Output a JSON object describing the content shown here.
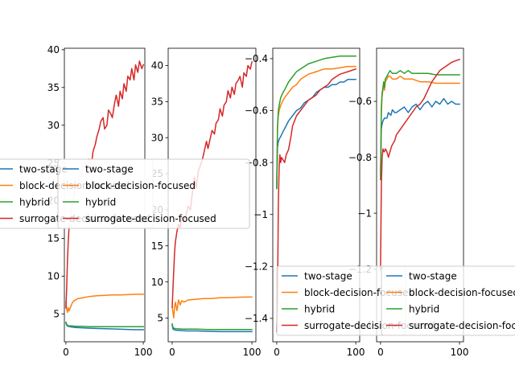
{
  "colors": {
    "two-stage": "#1f77b4",
    "block-decision-focused": "#ff7f0e",
    "hybrid": "#2ca02c",
    "surrogate-decision-focused": "#d62728"
  },
  "legend_labels": [
    "two-stage",
    "block-decision-focused",
    "hybrid",
    "surrogate-decision-focused"
  ],
  "chart_data": [
    {
      "type": "line",
      "xlim": [
        -2,
        102
      ],
      "ylim": [
        1.3,
        40.2
      ],
      "xticks": [
        0,
        100
      ],
      "yticks": [
        5,
        10,
        15,
        20,
        25,
        30,
        35,
        40
      ],
      "legend": "left",
      "series": [
        {
          "name": "two-stage",
          "x": [
            0,
            1,
            2,
            3,
            5,
            8,
            12,
            20,
            30,
            45,
            60,
            75,
            90,
            100
          ],
          "y": [
            3.8,
            3.5,
            3.4,
            3.35,
            3.3,
            3.25,
            3.2,
            3.15,
            3.1,
            3.05,
            3.0,
            2.95,
            2.9,
            2.9
          ]
        },
        {
          "name": "block-decision-focused",
          "x": [
            0,
            1,
            2,
            3,
            4,
            6,
            8,
            10,
            15,
            20,
            30,
            40,
            50,
            60,
            70,
            80,
            90,
            100
          ],
          "y": [
            6.5,
            5.6,
            5.2,
            5.8,
            5.4,
            5.9,
            6.4,
            6.7,
            7.0,
            7.1,
            7.3,
            7.4,
            7.45,
            7.5,
            7.5,
            7.55,
            7.6,
            7.6
          ]
        },
        {
          "name": "hybrid",
          "x": [
            0,
            1,
            2,
            3,
            5,
            8,
            12,
            20,
            30,
            45,
            60,
            75,
            90,
            100
          ],
          "y": [
            3.9,
            3.6,
            3.5,
            3.45,
            3.4,
            3.4,
            3.35,
            3.35,
            3.3,
            3.3,
            3.3,
            3.3,
            3.3,
            3.3
          ]
        },
        {
          "name": "surrogate-decision-focused",
          "x": [
            0,
            1,
            2,
            3,
            4,
            6,
            8,
            10,
            12,
            15,
            18,
            20,
            22,
            25,
            28,
            30,
            33,
            35,
            38,
            40,
            43,
            45,
            48,
            50,
            53,
            55,
            58,
            60,
            63,
            65,
            68,
            70,
            73,
            75,
            78,
            80,
            83,
            85,
            88,
            90,
            93,
            95,
            98,
            100
          ],
          "y": [
            5.8,
            8.5,
            12.0,
            14.5,
            16.5,
            18.0,
            19.5,
            20.5,
            21.5,
            22.0,
            23.5,
            23.0,
            24.5,
            25.0,
            24.0,
            25.5,
            24.8,
            26.5,
            27.5,
            28.5,
            29.5,
            30.5,
            31.0,
            29.5,
            30.0,
            32.0,
            31.5,
            31.0,
            33.0,
            34.0,
            32.5,
            34.5,
            33.5,
            35.5,
            34.5,
            36.5,
            36.0,
            37.5,
            36.0,
            38.0,
            37.0,
            38.5,
            37.5,
            38.0
          ]
        }
      ]
    },
    {
      "type": "line",
      "xlim": [
        -5,
        105
      ],
      "ylim": [
        1.7,
        42.4
      ],
      "xticks": [
        0,
        100
      ],
      "yticks": [
        5,
        10,
        15,
        20,
        25,
        30,
        35,
        40
      ],
      "legend": "left",
      "series": [
        {
          "name": "two-stage",
          "x": [
            0,
            1,
            2,
            3,
            5,
            8,
            12,
            20,
            30,
            45,
            60,
            75,
            90,
            100
          ],
          "y": [
            4.0,
            3.5,
            3.4,
            3.35,
            3.3,
            3.3,
            3.25,
            3.2,
            3.2,
            3.15,
            3.1,
            3.1,
            3.1,
            3.1
          ]
        },
        {
          "name": "block-decision-focused",
          "x": [
            0,
            1,
            2,
            3,
            4,
            6,
            8,
            10,
            12,
            15,
            20,
            30,
            40,
            50,
            60,
            70,
            80,
            90,
            100
          ],
          "y": [
            6.5,
            5.8,
            5.0,
            6.5,
            7.2,
            6.0,
            7.5,
            6.8,
            7.4,
            7.2,
            7.5,
            7.6,
            7.7,
            7.7,
            7.8,
            7.8,
            7.85,
            7.9,
            7.9
          ]
        },
        {
          "name": "hybrid",
          "x": [
            0,
            1,
            2,
            3,
            5,
            8,
            12,
            20,
            30,
            45,
            60,
            75,
            90,
            100
          ],
          "y": [
            4.2,
            3.7,
            3.6,
            3.55,
            3.5,
            3.5,
            3.45,
            3.45,
            3.45,
            3.4,
            3.4,
            3.4,
            3.4,
            3.4
          ]
        },
        {
          "name": "surrogate-decision-focused",
          "x": [
            0,
            1,
            2,
            3,
            4,
            6,
            8,
            10,
            12,
            15,
            18,
            20,
            23,
            25,
            28,
            30,
            33,
            35,
            38,
            40,
            43,
            45,
            48,
            50,
            53,
            55,
            58,
            60,
            63,
            65,
            68,
            70,
            73,
            75,
            78,
            80,
            83,
            85,
            88,
            90,
            93,
            95,
            98,
            100
          ],
          "y": [
            6.5,
            9.0,
            11.5,
            14.0,
            15.5,
            17.0,
            18.0,
            17.5,
            19.0,
            18.5,
            19.5,
            20.5,
            20.0,
            22.0,
            24.5,
            23.0,
            25.5,
            26.0,
            27.0,
            28.0,
            29.5,
            28.5,
            30.0,
            31.0,
            30.5,
            32.0,
            32.5,
            34.0,
            33.0,
            34.5,
            35.0,
            36.5,
            35.5,
            37.0,
            36.0,
            37.5,
            38.0,
            38.5,
            37.0,
            39.0,
            38.5,
            40.0,
            39.5,
            40.5
          ]
        }
      ]
    },
    {
      "type": "line",
      "xlim": [
        -5,
        105
      ],
      "ylim": [
        -1.49,
        -0.36
      ],
      "xticks": [
        0,
        100
      ],
      "yticks": [
        -1.4,
        -1.2,
        -1.0,
        -0.8,
        -0.6,
        -0.4
      ],
      "legend": "lower right",
      "series": [
        {
          "name": "two-stage",
          "x": [
            0,
            1,
            2,
            3,
            5,
            8,
            10,
            15,
            20,
            25,
            30,
            35,
            40,
            45,
            50,
            55,
            60,
            65,
            70,
            75,
            80,
            85,
            90,
            95,
            100
          ],
          "y": [
            -0.9,
            -0.74,
            -0.72,
            -0.71,
            -0.7,
            -0.68,
            -0.67,
            -0.64,
            -0.62,
            -0.6,
            -0.59,
            -0.57,
            -0.56,
            -0.55,
            -0.53,
            -0.52,
            -0.51,
            -0.51,
            -0.5,
            -0.5,
            -0.49,
            -0.49,
            -0.48,
            -0.48,
            -0.48
          ]
        },
        {
          "name": "block-decision-focused",
          "x": [
            0,
            1,
            2,
            3,
            5,
            8,
            10,
            15,
            20,
            25,
            30,
            35,
            40,
            50,
            60,
            70,
            80,
            90,
            100
          ],
          "y": [
            -0.88,
            -0.66,
            -0.62,
            -0.6,
            -0.58,
            -0.56,
            -0.55,
            -0.53,
            -0.51,
            -0.5,
            -0.48,
            -0.47,
            -0.46,
            -0.45,
            -0.44,
            -0.44,
            -0.435,
            -0.43,
            -0.43
          ]
        },
        {
          "name": "hybrid",
          "x": [
            0,
            1,
            2,
            3,
            5,
            8,
            10,
            15,
            20,
            25,
            30,
            35,
            40,
            50,
            60,
            70,
            80,
            90,
            100
          ],
          "y": [
            -0.9,
            -0.66,
            -0.6,
            -0.58,
            -0.55,
            -0.53,
            -0.52,
            -0.49,
            -0.47,
            -0.45,
            -0.44,
            -0.43,
            -0.42,
            -0.41,
            -0.4,
            -0.395,
            -0.39,
            -0.39,
            -0.39
          ]
        },
        {
          "name": "surrogate-decision-focused",
          "x": [
            0,
            1,
            2,
            3,
            4,
            5,
            6,
            8,
            10,
            12,
            15,
            18,
            20,
            25,
            30,
            35,
            40,
            45,
            50,
            55,
            60,
            65,
            70,
            75,
            80,
            85,
            90,
            95,
            100
          ],
          "y": [
            -1.45,
            -1.32,
            -0.96,
            -0.82,
            -0.77,
            -0.8,
            -0.78,
            -0.79,
            -0.8,
            -0.77,
            -0.75,
            -0.7,
            -0.66,
            -0.62,
            -0.6,
            -0.58,
            -0.56,
            -0.55,
            -0.54,
            -0.52,
            -0.51,
            -0.5,
            -0.48,
            -0.47,
            -0.46,
            -0.455,
            -0.45,
            -0.445,
            -0.44
          ]
        }
      ]
    },
    {
      "type": "line",
      "xlim": [
        -5,
        105
      ],
      "ylim": [
        -1.46,
        -0.41
      ],
      "xticks": [
        0,
        100
      ],
      "yticks": [
        -1.4,
        -1.2,
        -1.0,
        -0.8,
        -0.6
      ],
      "legend": "lower right",
      "series": [
        {
          "name": "two-stage",
          "x": [
            0,
            1,
            2,
            3,
            5,
            8,
            10,
            13,
            15,
            18,
            20,
            25,
            30,
            35,
            40,
            45,
            50,
            55,
            60,
            65,
            70,
            75,
            80,
            85,
            90,
            95,
            100
          ],
          "y": [
            -0.86,
            -0.7,
            -0.68,
            -0.67,
            -0.66,
            -0.66,
            -0.64,
            -0.65,
            -0.63,
            -0.64,
            -0.64,
            -0.63,
            -0.62,
            -0.64,
            -0.62,
            -0.61,
            -0.63,
            -0.61,
            -0.6,
            -0.62,
            -0.6,
            -0.61,
            -0.59,
            -0.61,
            -0.6,
            -0.61,
            -0.61
          ]
        },
        {
          "name": "block-decision-focused",
          "x": [
            0,
            1,
            2,
            3,
            4,
            5,
            6,
            8,
            10,
            12,
            15,
            20,
            25,
            30,
            35,
            40,
            50,
            60,
            70,
            80,
            90,
            100
          ],
          "y": [
            -0.88,
            -0.64,
            -0.58,
            -0.56,
            -0.54,
            -0.56,
            -0.53,
            -0.52,
            -0.51,
            -0.51,
            -0.52,
            -0.52,
            -0.51,
            -0.52,
            -0.52,
            -0.52,
            -0.53,
            -0.53,
            -0.535,
            -0.535,
            -0.535,
            -0.535
          ]
        },
        {
          "name": "hybrid",
          "x": [
            0,
            1,
            2,
            3,
            4,
            5,
            6,
            8,
            10,
            12,
            15,
            20,
            25,
            30,
            35,
            40,
            50,
            60,
            70,
            80,
            90,
            100
          ],
          "y": [
            -0.88,
            -0.62,
            -0.57,
            -0.55,
            -0.53,
            -0.55,
            -0.52,
            -0.51,
            -0.5,
            -0.49,
            -0.5,
            -0.5,
            -0.49,
            -0.5,
            -0.49,
            -0.5,
            -0.5,
            -0.5,
            -0.505,
            -0.505,
            -0.505,
            -0.505
          ]
        },
        {
          "name": "surrogate-decision-focused",
          "x": [
            0,
            1,
            2,
            3,
            4,
            5,
            6,
            8,
            10,
            12,
            14,
            16,
            18,
            20,
            25,
            30,
            35,
            40,
            45,
            50,
            55,
            60,
            65,
            70,
            75,
            80,
            85,
            90,
            95,
            100
          ],
          "y": [
            -1.2,
            -0.9,
            -0.8,
            -0.77,
            -0.78,
            -0.78,
            -0.77,
            -0.78,
            -0.8,
            -0.78,
            -0.76,
            -0.75,
            -0.74,
            -0.72,
            -0.7,
            -0.68,
            -0.66,
            -0.64,
            -0.62,
            -0.61,
            -0.59,
            -0.56,
            -0.53,
            -0.51,
            -0.49,
            -0.48,
            -0.47,
            -0.46,
            -0.455,
            -0.45
          ]
        }
      ]
    }
  ]
}
